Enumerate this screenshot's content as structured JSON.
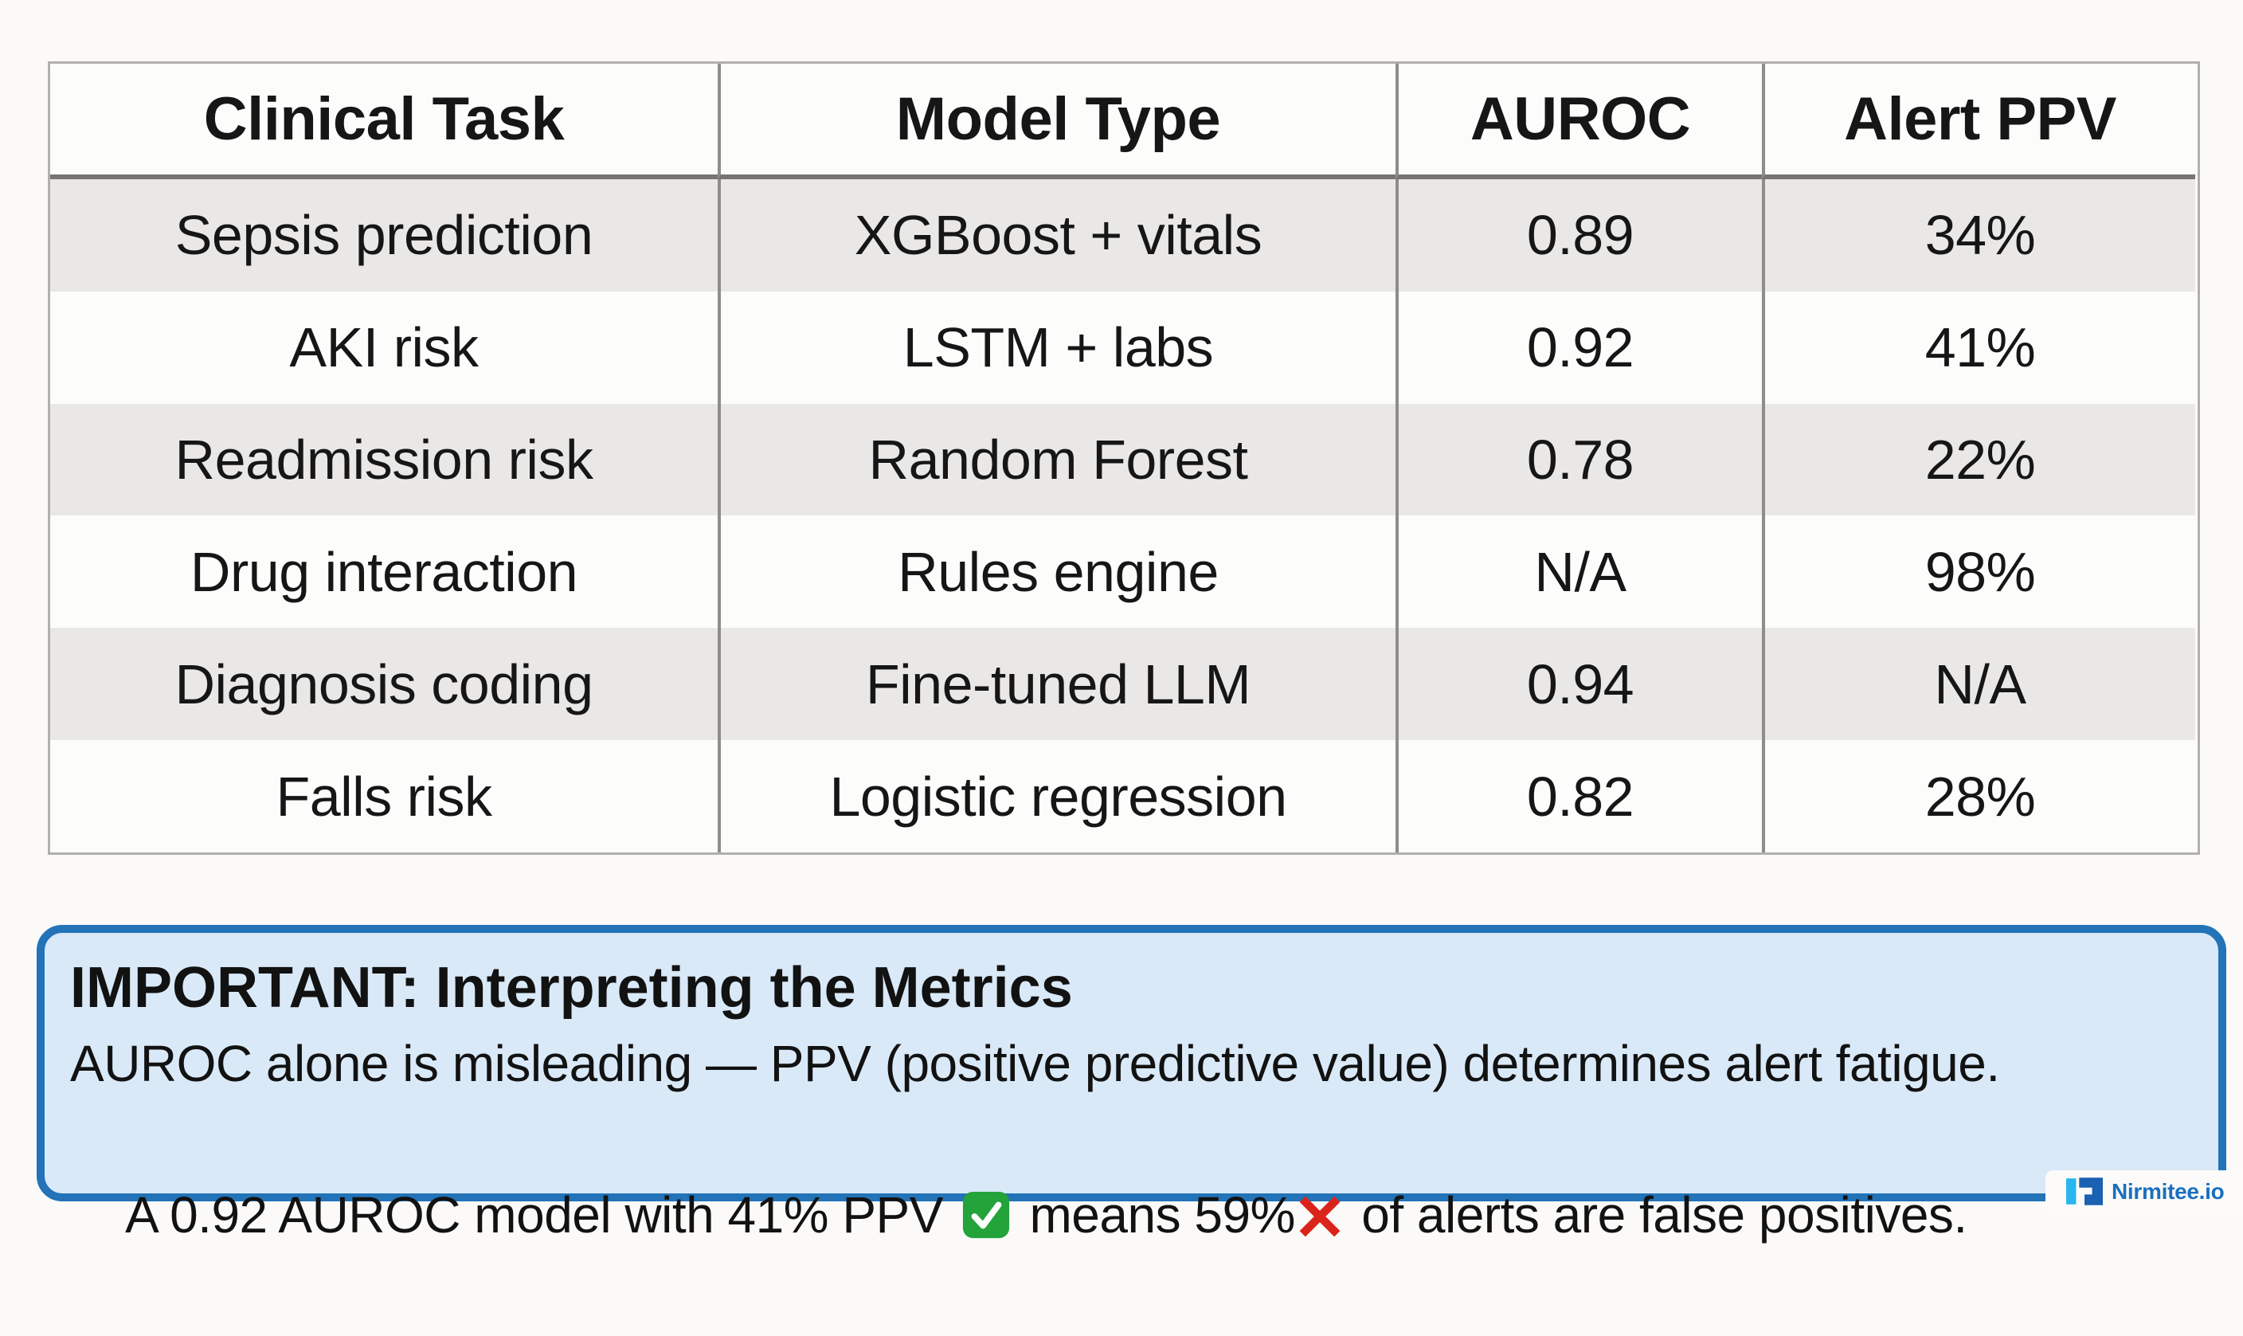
{
  "table": {
    "headers": [
      "Clinical Task",
      "Model Type",
      "AUROC",
      "Alert PPV"
    ],
    "rows": [
      [
        "Sepsis prediction",
        "XGBoost + vitals",
        "0.89",
        "34%"
      ],
      [
        "AKI risk",
        "LSTM + labs",
        "0.92",
        "41%"
      ],
      [
        "Readmission risk",
        "Random Forest",
        "0.78",
        "22%"
      ],
      [
        "Drug interaction",
        "Rules engine",
        "N/A",
        "98%"
      ],
      [
        "Diagnosis coding",
        "Fine-tuned LLM",
        "0.94",
        "N/A"
      ],
      [
        "Falls risk",
        "Logistic regression",
        "0.82",
        "28%"
      ]
    ]
  },
  "callout": {
    "heading": "IMPORTANT: Interpreting the Metrics",
    "line2": "AUROC alone is misleading — PPV (positive predictive value) determines alert fatigue.",
    "line3_part1": "A 0.92 AUROC model with 41% PPV ",
    "line3_check_icon": "check-mark-button-emoji",
    "line3_part2": " means 59%",
    "line3_cross_icon": "cross-mark-emoji",
    "line3_part3": " of alerts are false positives.",
    "border_color": "#2273b8",
    "background_color": "#d9e9f8"
  },
  "branding": {
    "logo_text": "Nirmitee.io",
    "logo_text_color": "#1a6fc0",
    "logo_icon_light_color": "#29b5f0",
    "logo_icon_dark_color": "#1b60b2"
  },
  "colors": {
    "page_background": "#fbfaf8",
    "row_stripe": "#e9e8e7",
    "row_plain": "#fcfcfb",
    "table_border": "#b1b0ae",
    "header_divider": "#767573",
    "text": "#161616",
    "check_emoji_green": "#23a33a",
    "cross_emoji_red": "#da241b"
  }
}
